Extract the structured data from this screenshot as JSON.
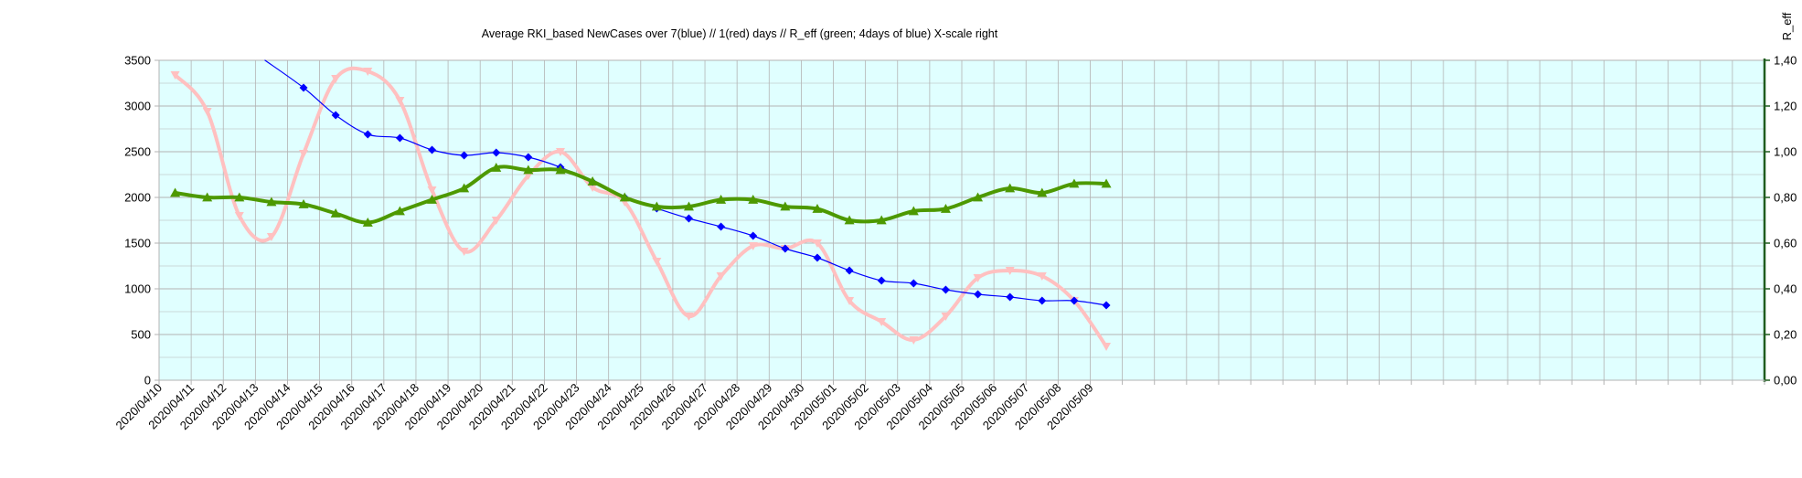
{
  "chart_data": {
    "type": "line",
    "title": "Average RKI_based NewCases over 7(blue) // 1(red) days //  R_eff (green; 4days of blue) X-scale right",
    "ylabel": "",
    "ylabel_right": "R_eff",
    "xlabel": "",
    "ylim": [
      0,
      3500
    ],
    "ylim_right": [
      0,
      1.4
    ],
    "yticks": [
      "0",
      "500",
      "1000",
      "1500",
      "2000",
      "2500",
      "3000",
      "3500"
    ],
    "yticks_right": [
      "0,00",
      "0,20",
      "0,40",
      "0,60",
      "0,80",
      "1,00",
      "1,20",
      "1,40"
    ],
    "grid": true,
    "background_color": "#e0ffff",
    "grid_color": "#b3b3b3",
    "categories": [
      "2020/04/10",
      "2020/04/11",
      "2020/04/12",
      "2020/04/13",
      "2020/04/14",
      "2020/04/15",
      "2020/04/16",
      "2020/04/17",
      "2020/04/18",
      "2020/04/19",
      "2020/04/20",
      "2020/04/21",
      "2020/04/22",
      "2020/04/23",
      "2020/04/24",
      "2020/04/25",
      "2020/04/26",
      "2020/04/27",
      "2020/04/28",
      "2020/04/29",
      "2020/04/30",
      "2020/05/01",
      "2020/05/02",
      "2020/05/03",
      "2020/05/04",
      "2020/05/05",
      "2020/05/06",
      "2020/05/07",
      "2020/05/08",
      "2020/05/09"
    ],
    "total_slots": 50,
    "series": [
      {
        "key": "red",
        "axis": "left",
        "color": "#ffc0c0",
        "marker": "triangle-down",
        "values": [
          3340,
          2940,
          1800,
          1570,
          2480,
          3300,
          3380,
          3060,
          2080,
          1410,
          1750,
          2240,
          2500,
          2110,
          1950,
          1300,
          700,
          1140,
          1470,
          1440,
          1500,
          870,
          640,
          440,
          700,
          1120,
          1200,
          1140,
          870,
          370
        ]
      },
      {
        "key": "blue",
        "axis": "left",
        "color": "#0000ff",
        "marker": "diamond",
        "values": [
          null,
          null,
          null,
          null,
          3200,
          2900,
          2690,
          2650,
          2520,
          2460,
          2490,
          2440,
          2330,
          2170,
          2000,
          1880,
          1770,
          1680,
          1580,
          1440,
          1340,
          1200,
          1090,
          1060,
          990,
          940,
          910,
          870,
          870,
          820
        ],
        "lead_in": {
          "x": 3.3,
          "y": 3500
        }
      },
      {
        "key": "green",
        "axis": "right",
        "color": "#4d9900",
        "marker": "triangle-up",
        "values": [
          0.82,
          0.8,
          0.8,
          0.78,
          0.77,
          0.73,
          0.69,
          0.74,
          0.79,
          0.84,
          0.93,
          0.92,
          0.92,
          0.87,
          0.8,
          0.76,
          0.76,
          0.79,
          0.79,
          0.76,
          0.75,
          0.7,
          0.7,
          0.74,
          0.75,
          0.8,
          0.84,
          0.82,
          0.86,
          0.86
        ]
      }
    ]
  }
}
